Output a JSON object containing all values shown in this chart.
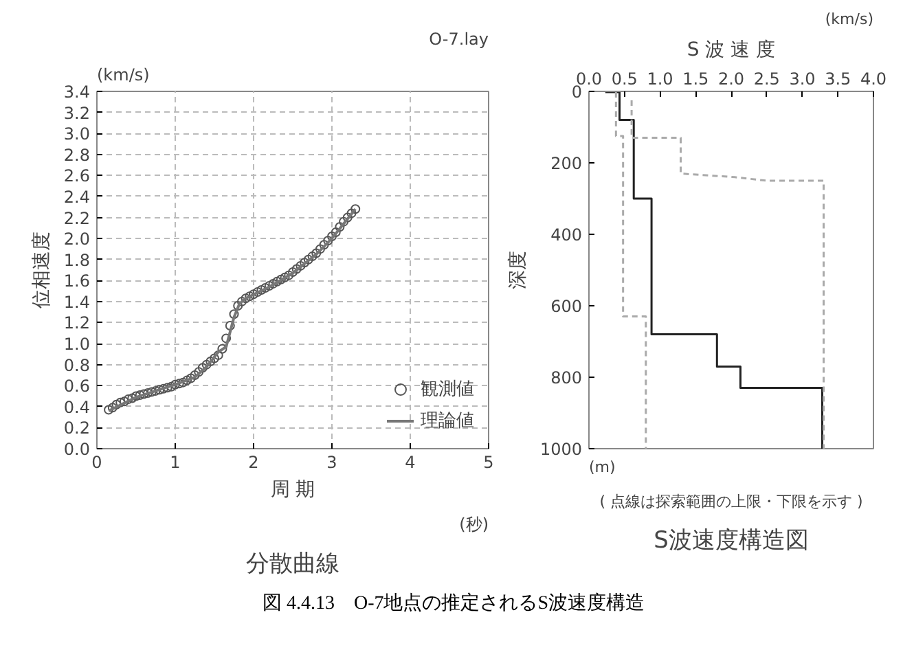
{
  "chart_data": [
    {
      "type": "scatter",
      "title": "分散曲線",
      "xlabel": "周 期",
      "ylabel": "位相速度",
      "annotations": [
        "(km/s)",
        "O-7.lay",
        "(秒)"
      ],
      "xlim": [
        0,
        5
      ],
      "xticks": [
        0,
        1,
        2,
        3,
        4,
        5
      ],
      "ylim": [
        0,
        3.4
      ],
      "yticks": [
        {
          "value": 0,
          "label": "0.0"
        },
        {
          "value": 0.2,
          "label": "0.2"
        },
        {
          "value": 0.4,
          "label": "0.4"
        },
        {
          "value": 0.6,
          "label": "0.6"
        },
        {
          "value": 0.8,
          "label": "0.8"
        },
        {
          "value": 1.0,
          "label": "1.0"
        },
        {
          "value": 1.2,
          "label": "1.2"
        },
        {
          "value": 1.4,
          "label": "1.4"
        },
        {
          "value": 1.6,
          "label": "1.6"
        },
        {
          "value": 1.8,
          "label": "1.8"
        },
        {
          "value": 2.0,
          "label": "2.0"
        },
        {
          "value": 2.2,
          "label": "2.2"
        },
        {
          "value": 2.4,
          "label": "2.4"
        },
        {
          "value": 2.6,
          "label": "2.6"
        },
        {
          "value": 2.8,
          "label": "2.8"
        },
        {
          "value": 3.0,
          "label": "3.0"
        },
        {
          "value": 3.2,
          "label": "3.2"
        },
        {
          "value": 3.4,
          "label": "3.4"
        }
      ],
      "grid": true,
      "legend": "bottom right",
      "series": [
        {
          "name": "観測値",
          "type": "scatter",
          "marker": "circle",
          "color": "#555555",
          "x": [
            0.15,
            0.2,
            0.25,
            0.3,
            0.35,
            0.4,
            0.45,
            0.5,
            0.55,
            0.6,
            0.65,
            0.7,
            0.75,
            0.8,
            0.85,
            0.9,
            0.95,
            1.0,
            1.05,
            1.1,
            1.15,
            1.2,
            1.25,
            1.3,
            1.35,
            1.4,
            1.45,
            1.5,
            1.55,
            1.6,
            1.65,
            1.7,
            1.75,
            1.8,
            1.85,
            1.9,
            1.95,
            2.0,
            2.05,
            2.1,
            2.15,
            2.2,
            2.25,
            2.3,
            2.35,
            2.4,
            2.45,
            2.5,
            2.55,
            2.6,
            2.65,
            2.7,
            2.75,
            2.8,
            2.85,
            2.9,
            2.95,
            3.0,
            3.05,
            3.1,
            3.15,
            3.2,
            3.25,
            3.3
          ],
          "values": [
            0.37,
            0.39,
            0.42,
            0.44,
            0.45,
            0.47,
            0.48,
            0.5,
            0.51,
            0.52,
            0.53,
            0.54,
            0.55,
            0.56,
            0.57,
            0.58,
            0.59,
            0.61,
            0.62,
            0.63,
            0.65,
            0.67,
            0.7,
            0.73,
            0.77,
            0.8,
            0.83,
            0.86,
            0.89,
            0.95,
            1.05,
            1.17,
            1.28,
            1.36,
            1.4,
            1.43,
            1.45,
            1.47,
            1.49,
            1.51,
            1.53,
            1.55,
            1.57,
            1.59,
            1.61,
            1.63,
            1.65,
            1.68,
            1.71,
            1.74,
            1.77,
            1.8,
            1.83,
            1.86,
            1.9,
            1.94,
            1.98,
            2.02,
            2.06,
            2.11,
            2.16,
            2.2,
            2.24,
            2.28
          ]
        },
        {
          "name": "理論値",
          "type": "line",
          "color": "#777777",
          "x": [
            0.15,
            0.5,
            1.0,
            1.25,
            1.4,
            1.55,
            1.65,
            1.75,
            1.82,
            1.9,
            2.2,
            2.5,
            2.8,
            3.0,
            3.3
          ],
          "values": [
            0.36,
            0.49,
            0.61,
            0.68,
            0.78,
            0.92,
            0.97,
            1.25,
            1.38,
            1.43,
            1.54,
            1.67,
            1.85,
            2.0,
            2.28
          ]
        }
      ]
    },
    {
      "type": "line",
      "title": "S波速度構造図",
      "xlabel": "S 波 速 度",
      "ylabel": "深度",
      "annotations": [
        "(km/s)",
        "(m)",
        "( 点線は探索範囲の上限・下限を示す )",
        "図 4.4.13　O-7地点の推定されるS波速度構造"
      ],
      "xlim": [
        0,
        4
      ],
      "xticks": [
        {
          "value": 0,
          "label": "0.0"
        },
        {
          "value": 0.5,
          "label": "0.5"
        },
        {
          "value": 1,
          "label": "1.0"
        },
        {
          "value": 1.5,
          "label": "1.5"
        },
        {
          "value": 2,
          "label": "2.0"
        },
        {
          "value": 2.5,
          "label": "2.5"
        },
        {
          "value": 3,
          "label": "3.0"
        },
        {
          "value": 3.5,
          "label": "3.5"
        },
        {
          "value": 4,
          "label": "4.0"
        }
      ],
      "ylim": [
        1000,
        0
      ],
      "yticks": [
        0,
        200,
        400,
        600,
        800,
        1000
      ],
      "series": [
        {
          "color": "#222222",
          "line_style": "solid",
          "x": [
            0.23,
            0.43,
            0.43,
            0.63,
            0.63,
            0.88,
            0.88,
            1.8,
            1.8,
            2.13,
            2.13,
            3.28,
            3.28
          ],
          "values": [
            2,
            2,
            80,
            80,
            300,
            300,
            680,
            680,
            770,
            770,
            830,
            830,
            1000
          ]
        },
        {
          "color": "#aaaaaa",
          "line_style": "dashed",
          "x": [
            0.38,
            0.38,
            0.48,
            0.48,
            0.8,
            0.8
          ],
          "values": [
            2,
            125,
            125,
            630,
            630,
            1000
          ]
        },
        {
          "color": "#aaaaaa",
          "line_style": "dashed",
          "x": [
            0.6,
            0.6,
            1.29,
            1.29,
            2.05,
            2.5,
            3.3,
            3.3
          ],
          "values": [
            25,
            130,
            130,
            230,
            240,
            250,
            250,
            1000
          ]
        }
      ]
    }
  ]
}
